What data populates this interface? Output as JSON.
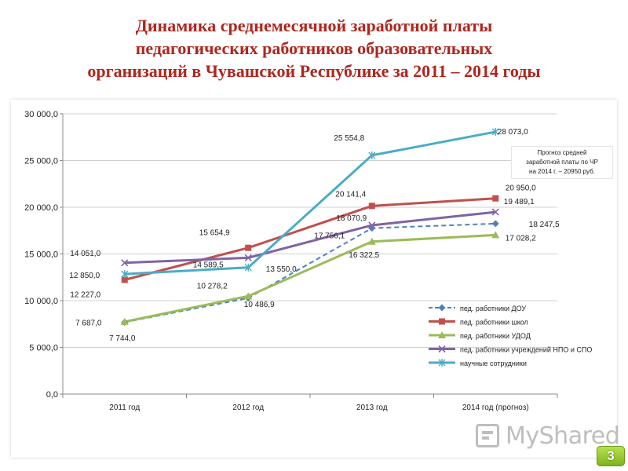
{
  "title_lines": [
    "Динамика среднемесячной заработной платы",
    "педагогических работников образовательных",
    "организаций в Чувашской Республике за 2011 – 2014 годы"
  ],
  "annotation_lines": [
    "Прогноз средней",
    "заработной платы по ЧР",
    "на 2014 г. – 20950 руб."
  ],
  "watermark": "MyShared",
  "page_number": "3",
  "chart_data": {
    "type": "line",
    "categories": [
      "2011 год",
      "2012 год",
      "2013 год",
      "2014 год (прогноз)"
    ],
    "ylim": [
      0,
      30000
    ],
    "y_ticks": [
      0,
      5000,
      10000,
      15000,
      20000,
      25000,
      30000
    ],
    "y_tick_labels": [
      "0,0",
      "5 000,0",
      "10 000,0",
      "15 000,0",
      "20 000,0",
      "25 000,0",
      "30 000,0"
    ],
    "grid": true,
    "legend_position": "bottom-right",
    "series": [
      {
        "name": "пед. работники ДОУ",
        "values": [
          7687.0,
          10278.2,
          17756.1,
          18247.5
        ],
        "labels": [
          "7 687,0",
          "10 278,2",
          "17 756,1",
          "18 247,5"
        ],
        "color": "#4f81bd",
        "marker": "diamond",
        "dashed": true
      },
      {
        "name": "пед. работники школ",
        "values": [
          12227.0,
          15654.9,
          20141.4,
          20950.0
        ],
        "labels": [
          "12 227,0",
          "15 654,9",
          "20 141,4",
          "20 950,0"
        ],
        "color": "#c0504d",
        "marker": "square",
        "dashed": false
      },
      {
        "name": "пед. работники УДОД",
        "values": [
          7744.0,
          10486.9,
          16322.5,
          17028.2
        ],
        "labels": [
          "7 744,0",
          "10 486,9",
          "16 322,5",
          "17 028,2"
        ],
        "color": "#9bbb59",
        "marker": "triangle",
        "dashed": false
      },
      {
        "name": "пед. работники учреждений НПО и СПО",
        "values": [
          14051.0,
          14589.5,
          18070.9,
          19489.1
        ],
        "labels": [
          "14 051,0",
          "14 589,5",
          "18 070,9",
          "19 489,1"
        ],
        "color": "#8064a2",
        "marker": "x",
        "dashed": false
      },
      {
        "name": "научные сотрудники",
        "values": [
          12850.0,
          13550.0,
          25554.8,
          28073.0
        ],
        "labels": [
          "12 850,0",
          "13 550,0",
          "25 554,8",
          "28 073,0"
        ],
        "color": "#4bacc6",
        "marker": "star",
        "dashed": false
      }
    ]
  }
}
